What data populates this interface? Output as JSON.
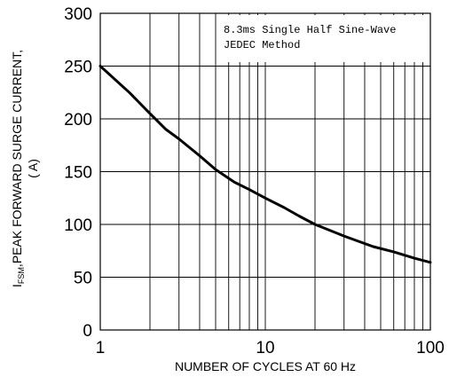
{
  "chart_data": {
    "type": "line",
    "xlabel": "NUMBER OF CYCLES AT 60 Hz",
    "ylabel_main": ",PEAK FORWARD SURGE CURRENT,",
    "ylabel_symbol": "I",
    "ylabel_subscript": "FSM",
    "ylabel_units": "( A)",
    "xscale": "log",
    "xlim": [
      1,
      100
    ],
    "ylim": [
      0,
      300
    ],
    "x_ticks": [
      1,
      10,
      100
    ],
    "x_tick_labels": [
      "1",
      "10",
      "100"
    ],
    "y_ticks": [
      0,
      50,
      100,
      150,
      200,
      250,
      300
    ],
    "y_tick_labels": [
      "0",
      "50",
      "100",
      "150",
      "200",
      "250",
      "300"
    ],
    "grid": true,
    "annotation": [
      "8.3ms Single Half Sine-Wave",
      "JEDEC Method"
    ],
    "series": [
      {
        "x": [
          1,
          1.5,
          2,
          2.5,
          3,
          4,
          5,
          6.5,
          8,
          10,
          13,
          16,
          20,
          30,
          45,
          60,
          80,
          100
        ],
        "values": [
          250,
          225,
          205,
          190,
          181,
          165,
          152,
          140,
          133,
          125,
          116,
          108,
          100,
          89,
          79,
          74,
          68,
          64
        ]
      }
    ]
  }
}
